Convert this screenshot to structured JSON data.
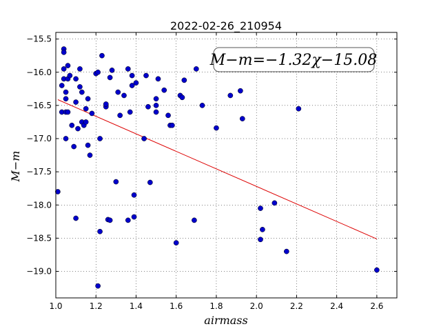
{
  "chart_data": {
    "type": "scatter",
    "title": "2022-02-26_210954",
    "xlabel": "airmass",
    "ylabel": "M−m",
    "xlim": [
      1.0,
      2.7
    ],
    "ylim": [
      -19.4,
      -15.4
    ],
    "y_inverted": true,
    "grid": true,
    "x_ticks": [
      "1.0",
      "1.2",
      "1.4",
      "1.6",
      "1.8",
      "2.0",
      "2.2",
      "2.4",
      "2.6"
    ],
    "y_ticks": [
      "−15.5",
      "−16.0",
      "−16.5",
      "−17.0",
      "−17.5",
      "−18.0",
      "−18.5",
      "−19.0"
    ],
    "annotation": "M−m=−1.32χ−15.08",
    "point_color": "#0000cc",
    "line_color": "#dd0000",
    "points": [
      [
        1.01,
        -17.8
      ],
      [
        1.03,
        -16.6
      ],
      [
        1.03,
        -16.2
      ],
      [
        1.04,
        -15.65
      ],
      [
        1.04,
        -15.7
      ],
      [
        1.04,
        -15.95
      ],
      [
        1.04,
        -16.1
      ],
      [
        1.05,
        -16.4
      ],
      [
        1.05,
        -16.6
      ],
      [
        1.05,
        -17.0
      ],
      [
        1.05,
        -16.3
      ],
      [
        1.06,
        -16.1
      ],
      [
        1.06,
        -15.9
      ],
      [
        1.06,
        -16.6
      ],
      [
        1.07,
        -16.05
      ],
      [
        1.08,
        -16.8
      ],
      [
        1.09,
        -17.12
      ],
      [
        1.1,
        -18.2
      ],
      [
        1.1,
        -16.1
      ],
      [
        1.1,
        -16.45
      ],
      [
        1.11,
        -16.85
      ],
      [
        1.12,
        -16.22
      ],
      [
        1.12,
        -15.95
      ],
      [
        1.13,
        -16.3
      ],
      [
        1.13,
        -16.75
      ],
      [
        1.14,
        -16.8
      ],
      [
        1.15,
        -16.75
      ],
      [
        1.15,
        -16.55
      ],
      [
        1.16,
        -16.4
      ],
      [
        1.16,
        -17.1
      ],
      [
        1.17,
        -17.25
      ],
      [
        1.18,
        -16.62
      ],
      [
        1.2,
        -16.02
      ],
      [
        1.21,
        -16.0
      ],
      [
        1.21,
        -19.22
      ],
      [
        1.22,
        -18.4
      ],
      [
        1.22,
        -17.0
      ],
      [
        1.23,
        -15.75
      ],
      [
        1.25,
        -16.52
      ],
      [
        1.25,
        -16.48
      ],
      [
        1.26,
        -18.22
      ],
      [
        1.27,
        -18.23
      ],
      [
        1.27,
        -16.08
      ],
      [
        1.28,
        -15.97
      ],
      [
        1.3,
        -17.65
      ],
      [
        1.31,
        -16.3
      ],
      [
        1.32,
        -16.65
      ],
      [
        1.34,
        -16.35
      ],
      [
        1.36,
        -15.95
      ],
      [
        1.36,
        -18.23
      ],
      [
        1.37,
        -16.6
      ],
      [
        1.38,
        -16.05
      ],
      [
        1.38,
        -16.2
      ],
      [
        1.39,
        -18.18
      ],
      [
        1.39,
        -17.85
      ],
      [
        1.4,
        -16.16
      ],
      [
        1.44,
        -17.0
      ],
      [
        1.45,
        -16.05
      ],
      [
        1.46,
        -16.52
      ],
      [
        1.47,
        -17.66
      ],
      [
        1.5,
        -16.6
      ],
      [
        1.5,
        -16.5
      ],
      [
        1.5,
        -16.4
      ],
      [
        1.51,
        -16.1
      ],
      [
        1.54,
        -16.27
      ],
      [
        1.56,
        -16.65
      ],
      [
        1.57,
        -16.8
      ],
      [
        1.58,
        -16.8
      ],
      [
        1.6,
        -18.57
      ],
      [
        1.62,
        -16.35
      ],
      [
        1.63,
        -16.38
      ],
      [
        1.64,
        -16.12
      ],
      [
        1.69,
        -18.23
      ],
      [
        1.7,
        -15.95
      ],
      [
        1.73,
        -16.5
      ],
      [
        1.8,
        -16.84
      ],
      [
        1.87,
        -16.35
      ],
      [
        1.92,
        -16.28
      ],
      [
        1.93,
        -16.7
      ],
      [
        2.02,
        -18.05
      ],
      [
        2.02,
        -18.52
      ],
      [
        2.03,
        -18.37
      ],
      [
        2.09,
        -17.97
      ],
      [
        2.15,
        -18.7
      ],
      [
        2.21,
        -16.55
      ],
      [
        2.6,
        -18.98
      ]
    ],
    "fit_line": {
      "slope": -1.32,
      "intercept": -15.08,
      "x_range": [
        1.01,
        2.6
      ]
    }
  }
}
